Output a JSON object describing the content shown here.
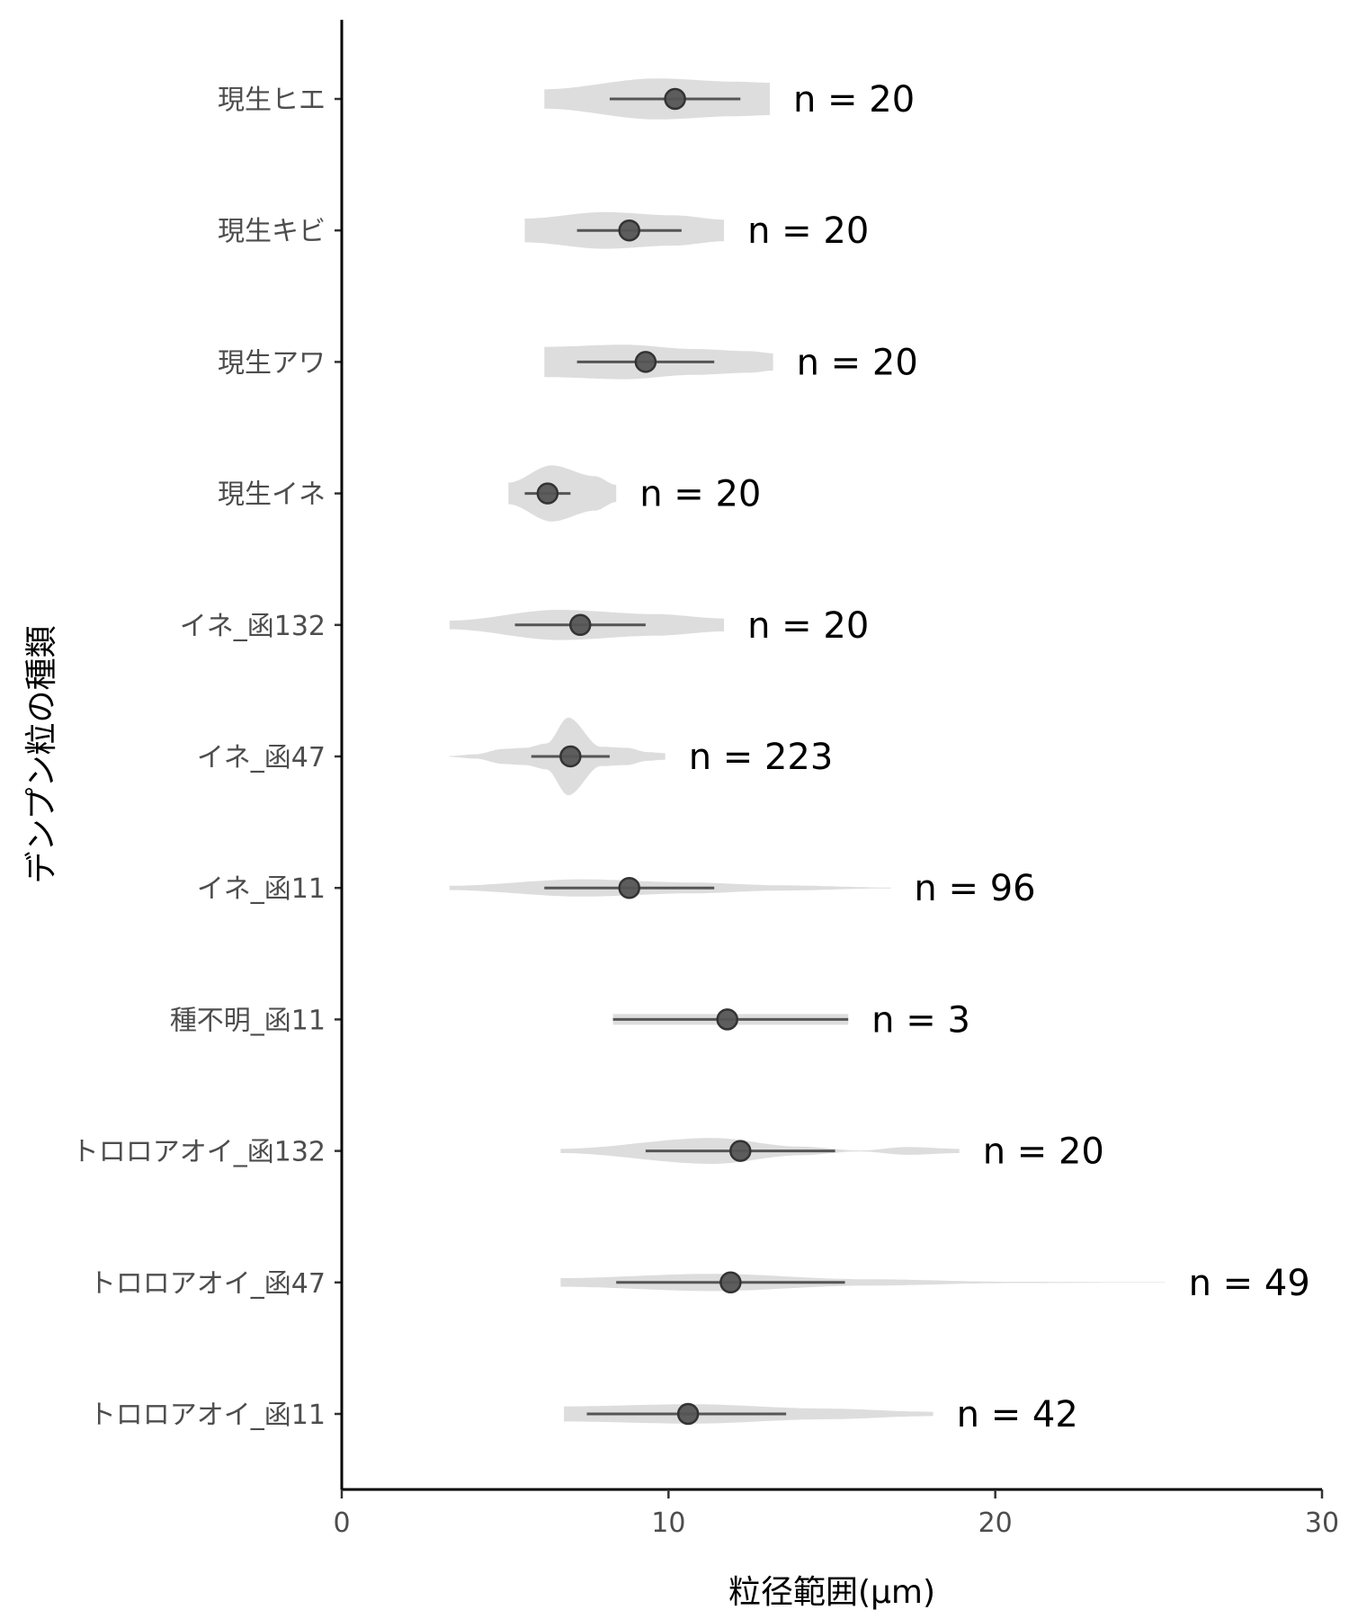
{
  "chart_data": {
    "type": "violin",
    "xlabel": "粒径範囲(μm)",
    "ylabel": "デンプン粒の種類",
    "xlim": [
      0,
      30
    ],
    "xticks": [
      0,
      10,
      20,
      30
    ],
    "xtick_labels": [
      "0",
      "10",
      "20",
      "30"
    ],
    "grid": false,
    "colors": {
      "violin": "#dddddd",
      "point": "#555555",
      "line": "#555555",
      "axis": "#000000"
    },
    "categories": [
      {
        "name": "現生ヒエ",
        "n_label": "n = 20",
        "min": 6.2,
        "max": 13.1,
        "mean": 10.2,
        "sd_low": 8.2,
        "sd_high": 12.2,
        "profile": [
          [
            0,
            0.45
          ],
          [
            0.5,
            0.95
          ],
          [
            0.85,
            0.8
          ],
          [
            1,
            0.75
          ]
        ]
      },
      {
        "name": "現生キビ",
        "n_label": "n = 20",
        "min": 5.6,
        "max": 11.7,
        "mean": 8.8,
        "sd_low": 7.2,
        "sd_high": 10.4,
        "profile": [
          [
            0,
            0.55
          ],
          [
            0.4,
            0.85
          ],
          [
            0.75,
            0.7
          ],
          [
            1,
            0.5
          ]
        ]
      },
      {
        "name": "現生アワ",
        "n_label": "n = 20",
        "min": 6.2,
        "max": 13.2,
        "mean": 9.3,
        "sd_low": 7.2,
        "sd_high": 11.4,
        "profile": [
          [
            0,
            0.7
          ],
          [
            0.35,
            0.8
          ],
          [
            0.65,
            0.6
          ],
          [
            0.9,
            0.5
          ],
          [
            1,
            0.4
          ]
        ]
      },
      {
        "name": "現生イネ",
        "n_label": "n = 20",
        "min": 5.1,
        "max": 8.4,
        "mean": 6.3,
        "sd_low": 5.6,
        "sd_high": 7.0,
        "profile": [
          [
            0,
            0.5
          ],
          [
            0.4,
            1.3
          ],
          [
            0.8,
            0.8
          ],
          [
            1,
            0.4
          ]
        ]
      },
      {
        "name": "イネ_函132",
        "n_label": "n = 20",
        "min": 3.3,
        "max": 11.7,
        "mean": 7.3,
        "sd_low": 5.3,
        "sd_high": 9.3,
        "profile": [
          [
            0,
            0.2
          ],
          [
            0.4,
            0.7
          ],
          [
            0.75,
            0.5
          ],
          [
            1,
            0.3
          ]
        ]
      },
      {
        "name": "イネ_函47",
        "n_label": "n = 223",
        "min": 3.3,
        "max": 9.9,
        "mean": 7.0,
        "sd_low": 5.8,
        "sd_high": 8.2,
        "profile": [
          [
            0,
            0.02
          ],
          [
            0.12,
            0.1
          ],
          [
            0.25,
            0.35
          ],
          [
            0.35,
            0.4
          ],
          [
            0.45,
            0.6
          ],
          [
            0.55,
            1.8
          ],
          [
            0.7,
            0.45
          ],
          [
            0.82,
            0.4
          ],
          [
            0.92,
            0.2
          ],
          [
            1,
            0.15
          ]
        ]
      },
      {
        "name": "イネ_函11",
        "n_label": "n = 96",
        "min": 3.3,
        "max": 16.8,
        "mean": 8.8,
        "sd_low": 6.2,
        "sd_high": 11.4,
        "profile": [
          [
            0,
            0.1
          ],
          [
            0.3,
            0.4
          ],
          [
            0.55,
            0.25
          ],
          [
            0.75,
            0.12
          ],
          [
            1,
            0.02
          ]
        ]
      },
      {
        "name": "種不明_函11",
        "n_label": "n = 3",
        "min": 8.3,
        "max": 15.5,
        "mean": 11.8,
        "sd_low": 8.3,
        "sd_high": 15.5,
        "profile": [
          [
            0,
            0.25
          ],
          [
            0.5,
            0.25
          ],
          [
            1,
            0.25
          ]
        ]
      },
      {
        "name": "トロロアオイ_函132",
        "n_label": "n = 20",
        "min": 6.7,
        "max": 18.9,
        "mean": 12.2,
        "sd_low": 9.3,
        "sd_high": 15.1,
        "profile": [
          [
            0,
            0.1
          ],
          [
            0.38,
            0.6
          ],
          [
            0.6,
            0.2
          ],
          [
            0.75,
            0.02
          ],
          [
            0.87,
            0.18
          ],
          [
            1,
            0.1
          ]
        ]
      },
      {
        "name": "トロロアオイ_函47",
        "n_label": "n = 49",
        "min": 6.7,
        "max": 25.2,
        "mean": 11.9,
        "sd_low": 8.4,
        "sd_high": 15.4,
        "profile": [
          [
            0,
            0.2
          ],
          [
            0.25,
            0.4
          ],
          [
            0.5,
            0.15
          ],
          [
            0.75,
            0.03
          ],
          [
            1,
            0.005
          ]
        ]
      },
      {
        "name": "トロロアオイ_函11",
        "n_label": "n = 42",
        "min": 6.8,
        "max": 18.1,
        "mean": 10.6,
        "sd_low": 7.5,
        "sd_high": 13.6,
        "profile": [
          [
            0,
            0.35
          ],
          [
            0.35,
            0.45
          ],
          [
            0.7,
            0.25
          ],
          [
            1,
            0.1
          ]
        ]
      }
    ]
  }
}
